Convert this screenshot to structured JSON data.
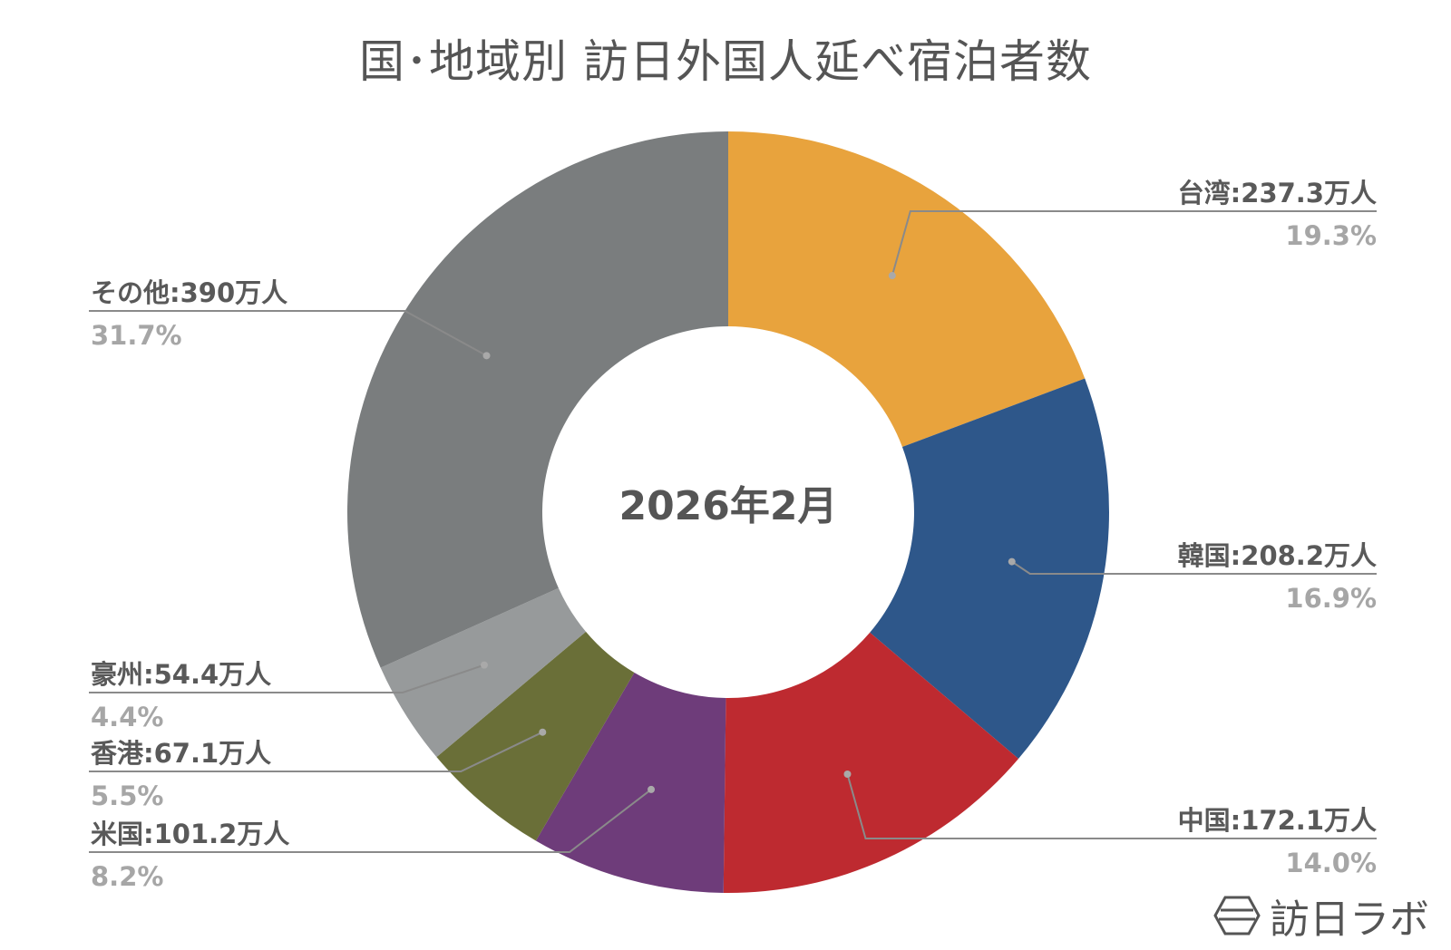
{
  "chart_data": {
    "type": "pie",
    "title": "国･地域別 訪日外国人延べ宿泊者数",
    "center_label": "2026年2月",
    "slices": [
      {
        "name": "台湾",
        "value": 237.3,
        "unit": "万人",
        "label": "台湾:237.3万人",
        "percent_label": "19.3%",
        "color": "#E8A33D"
      },
      {
        "name": "韓国",
        "value": 208.2,
        "unit": "万人",
        "label": "韓国:208.2万人",
        "percent_label": "16.9%",
        "color": "#2E578A"
      },
      {
        "name": "中国",
        "value": 172.1,
        "unit": "万人",
        "label": "中国:172.1万人",
        "percent_label": "14.0%",
        "color": "#BE2A30"
      },
      {
        "name": "米国",
        "value": 101.2,
        "unit": "万人",
        "label": "米国:101.2万人",
        "percent_label": "8.2%",
        "color": "#6E3C7A"
      },
      {
        "name": "香港",
        "value": 67.1,
        "unit": "万人",
        "label": "香港:67.1万人",
        "percent_label": "5.5%",
        "color": "#6A6F38"
      },
      {
        "name": "豪州",
        "value": 54.4,
        "unit": "万人",
        "label": "豪州:54.4万人",
        "percent_label": "4.4%",
        "color": "#979A9B"
      },
      {
        "name": "その他",
        "value": 390,
        "unit": "万人",
        "label": "その他:390万人",
        "percent_label": "31.7%",
        "color": "#7A7D7E"
      }
    ]
  },
  "logo": {
    "text": "訪日ラボ",
    "icon": "hexagon-logo-icon"
  }
}
